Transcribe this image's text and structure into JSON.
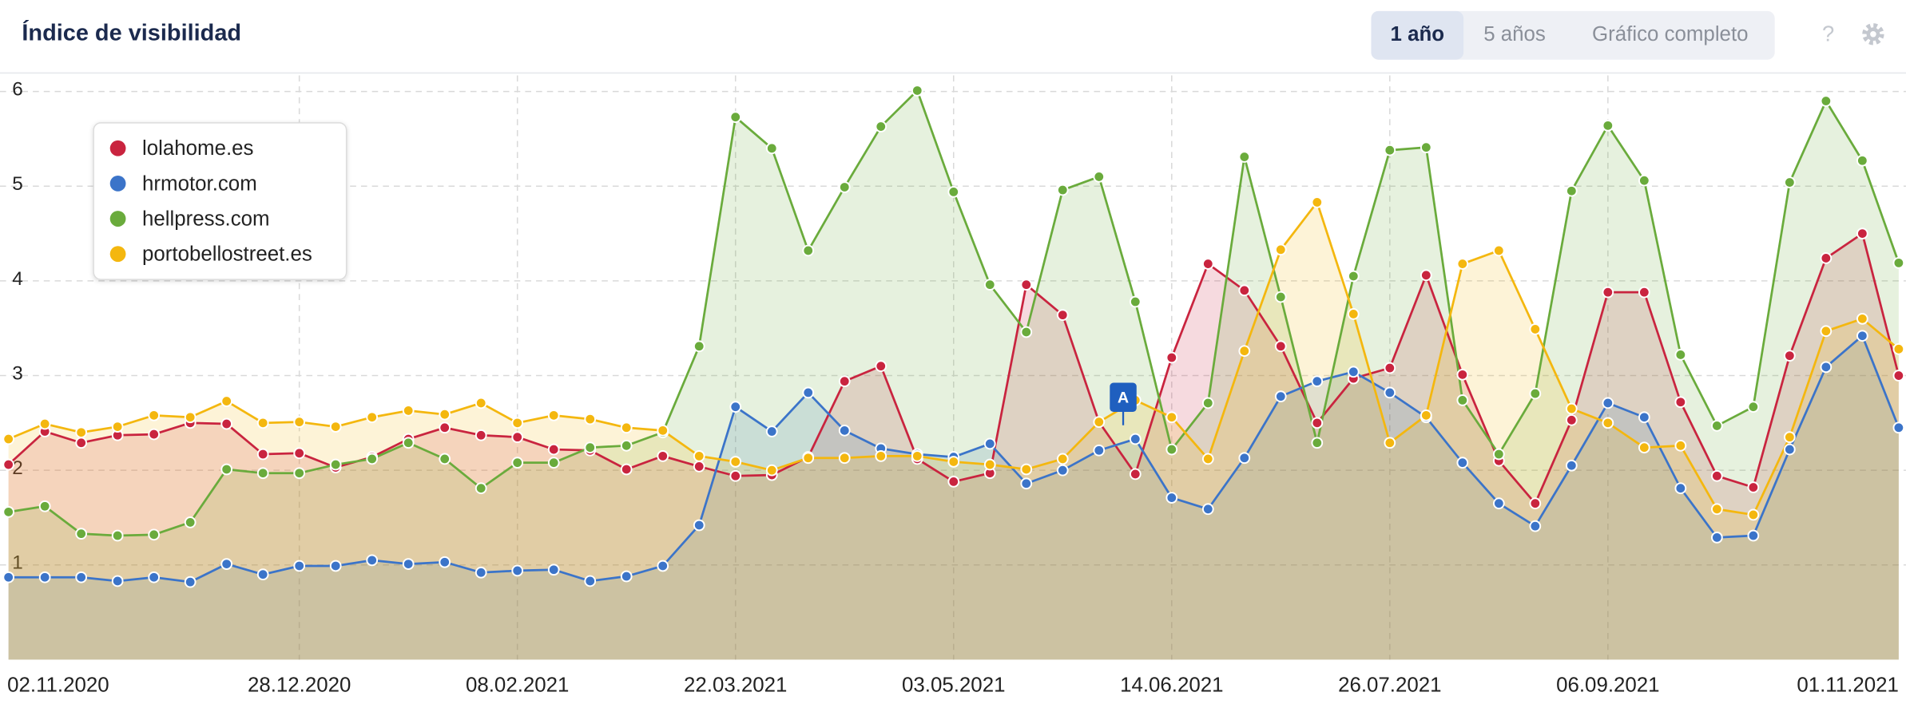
{
  "header": {
    "title": "Índice de visibilidad",
    "buttons": [
      "1 año",
      "5 años",
      "Gráfico completo"
    ],
    "help": "?"
  },
  "chart_data": {
    "type": "area",
    "categories": [
      "02.11.2020",
      null,
      null,
      null,
      null,
      null,
      null,
      null,
      "28.12.2020",
      null,
      null,
      null,
      null,
      null,
      "08.02.2021",
      null,
      null,
      null,
      null,
      null,
      "22.03.2021",
      null,
      null,
      null,
      null,
      null,
      "03.05.2021",
      null,
      null,
      null,
      null,
      null,
      "14.06.2021",
      null,
      null,
      null,
      null,
      null,
      "26.07.2021",
      null,
      null,
      null,
      null,
      null,
      "06.09.2021",
      null,
      null,
      null,
      null,
      null,
      null,
      null,
      "01.11.2021"
    ],
    "ylim": [
      0,
      6.17
    ],
    "yticks": [
      1,
      2,
      3,
      4,
      5,
      6
    ],
    "grid": true,
    "legend": "upper left",
    "annotations": [
      "A"
    ],
    "series": [
      {
        "name": "lolahome.es",
        "color": "#c9243f",
        "values": [
          2.06,
          2.41,
          2.29,
          2.37,
          2.38,
          2.5,
          2.49,
          2.17,
          2.18,
          2.03,
          2.14,
          2.33,
          2.45,
          2.37,
          2.35,
          2.22,
          2.21,
          2.01,
          2.15,
          2.04,
          1.94,
          1.95,
          2.14,
          2.94,
          3.1,
          2.12,
          1.88,
          1.97,
          3.96,
          3.64,
          2.51,
          1.96,
          3.19,
          4.18,
          3.9,
          3.31,
          2.5,
          2.97,
          3.08,
          4.06,
          3.01,
          2.1,
          1.65,
          2.53,
          3.88,
          3.88,
          2.72,
          1.94,
          1.82,
          3.21,
          4.24,
          4.5,
          3.0
        ]
      },
      {
        "name": "hrmotor.com",
        "color": "#3b74c9",
        "values": [
          0.87,
          0.87,
          0.87,
          0.83,
          0.87,
          0.82,
          1.01,
          0.9,
          0.99,
          0.99,
          1.05,
          1.01,
          1.03,
          0.92,
          0.94,
          0.95,
          0.83,
          0.88,
          0.99,
          1.42,
          2.67,
          2.41,
          2.82,
          2.42,
          2.23,
          2.17,
          2.14,
          2.28,
          1.86,
          2.0,
          2.21,
          2.33,
          1.71,
          1.59,
          2.13,
          2.78,
          2.94,
          3.04,
          2.82,
          2.56,
          2.08,
          1.65,
          1.41,
          2.05,
          2.71,
          2.56,
          1.81,
          1.29,
          1.31,
          2.22,
          3.09,
          3.42,
          2.45
        ]
      },
      {
        "name": "hellpress.com",
        "color": "#6aab3c",
        "values": [
          1.56,
          1.62,
          1.33,
          1.31,
          1.32,
          1.45,
          2.01,
          1.97,
          1.97,
          2.06,
          2.12,
          2.29,
          2.12,
          1.81,
          2.08,
          2.08,
          2.24,
          2.26,
          2.4,
          3.31,
          5.73,
          5.4,
          4.32,
          4.99,
          5.63,
          6.01,
          4.94,
          3.96,
          3.46,
          4.96,
          5.1,
          3.78,
          2.22,
          2.71,
          5.31,
          3.83,
          2.29,
          4.05,
          5.38,
          5.41,
          2.74,
          2.17,
          2.81,
          4.95,
          5.64,
          5.06,
          3.22,
          2.47,
          2.67,
          5.04,
          5.9,
          5.27,
          4.19
        ]
      },
      {
        "name": "portobellostreet.es",
        "color": "#f4b70f",
        "values": [
          2.33,
          2.49,
          2.4,
          2.46,
          2.58,
          2.56,
          2.73,
          2.5,
          2.51,
          2.46,
          2.56,
          2.63,
          2.59,
          2.71,
          2.5,
          2.58,
          2.54,
          2.45,
          2.42,
          2.15,
          2.09,
          2.0,
          2.13,
          2.13,
          2.15,
          2.15,
          2.09,
          2.06,
          2.01,
          2.12,
          2.51,
          2.74,
          2.56,
          2.12,
          3.26,
          4.33,
          4.83,
          3.65,
          2.29,
          2.58,
          4.18,
          4.32,
          3.49,
          2.65,
          2.5,
          2.24,
          2.26,
          1.59,
          1.53,
          2.35,
          3.47,
          3.6,
          3.28
        ]
      }
    ]
  }
}
